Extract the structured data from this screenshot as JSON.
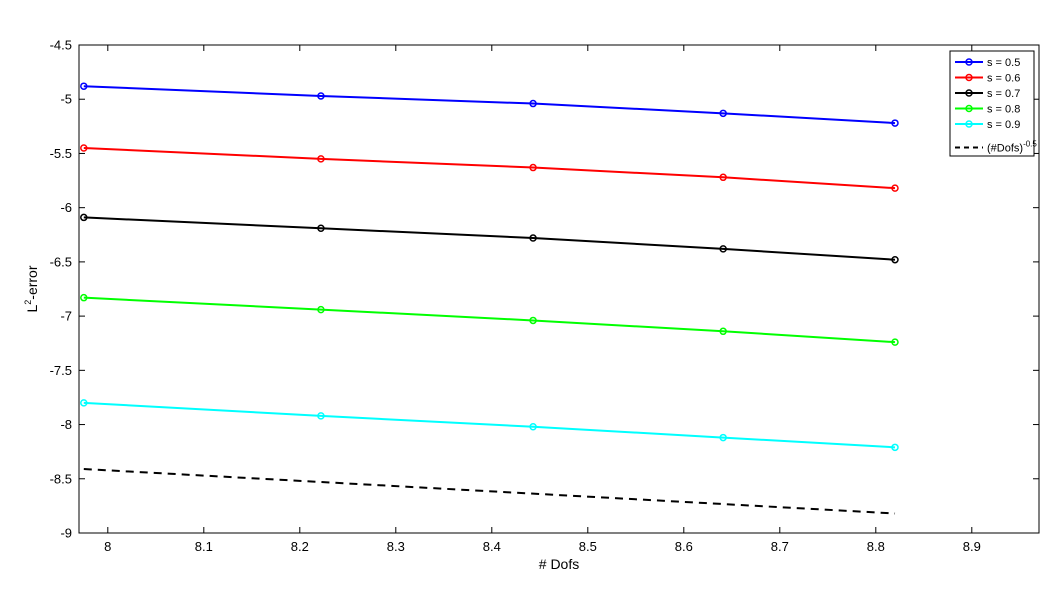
{
  "chart_data": {
    "type": "line",
    "xlabel": "# Dofs",
    "ylabel": "L",
    "ylabel_sup": "2",
    "ylabel_suffix": "-error",
    "xlim": [
      7.97,
      8.97
    ],
    "ylim": [
      -9,
      -4.5
    ],
    "xticks": [
      "8",
      "8.1",
      "8.2",
      "8.3",
      "8.4",
      "8.5",
      "8.6",
      "8.7",
      "8.8",
      "8.9"
    ],
    "yticks": [
      "-4.5",
      "-5",
      "-5.5",
      "-6",
      "-6.5",
      "-7",
      "-7.5",
      "-8",
      "-8.5",
      "-9"
    ],
    "x": [
      7.975,
      8.222,
      8.443,
      8.641,
      8.82
    ],
    "series": [
      {
        "name": "s = 0.5",
        "color": "#0000ff",
        "values": [
          -4.88,
          -4.97,
          -5.04,
          -5.13,
          -5.22
        ]
      },
      {
        "name": "s = 0.6",
        "color": "#ff0000",
        "values": [
          -5.45,
          -5.55,
          -5.63,
          -5.72,
          -5.82
        ]
      },
      {
        "name": "s = 0.7",
        "color": "#000000",
        "values": [
          -6.09,
          -6.19,
          -6.28,
          -6.38,
          -6.48
        ]
      },
      {
        "name": "s = 0.8",
        "color": "#00ff00",
        "values": [
          -6.83,
          -6.94,
          -7.04,
          -7.14,
          -7.24
        ]
      },
      {
        "name": "s = 0.9",
        "color": "#00ffff",
        "values": [
          -7.8,
          -7.92,
          -8.02,
          -8.12,
          -8.21
        ]
      }
    ],
    "reference": {
      "name": "(#Dofs)",
      "name_sup": "-0.5",
      "color": "#000000",
      "style": "dashed",
      "x": [
        7.975,
        8.82
      ],
      "values": [
        -8.41,
        -8.82
      ]
    },
    "legend_position": "top-right",
    "grid": false
  }
}
